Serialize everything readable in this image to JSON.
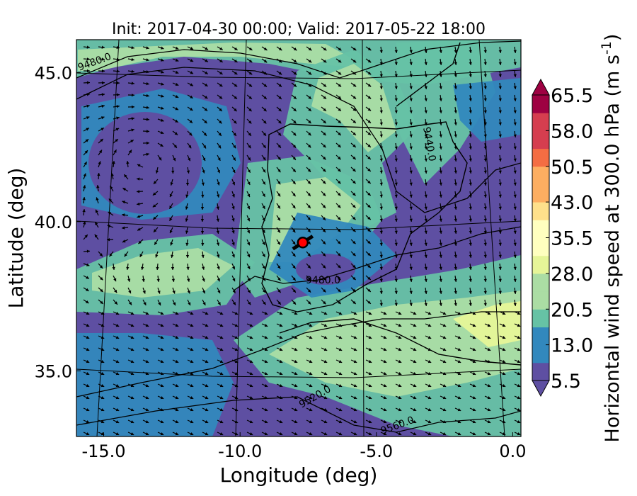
{
  "chart_data": {
    "type": "heatmap",
    "title": "Init: 2017-04-30 00:00; Valid: 2017-05-22 18:00",
    "xlabel": "Longitude (deg)",
    "ylabel": "Latitude (deg)",
    "xlim": [
      -16.0,
      0.3
    ],
    "ylim": [
      32.8,
      46.1
    ],
    "xticks": [
      "-15.0",
      "-10.0",
      "-5.0",
      "0.0"
    ],
    "yticks": [
      "35.0",
      "40.0",
      "45.0"
    ],
    "grid": true,
    "colorbar": {
      "label": "Horizontal wind speed at 300.0 hPa (m s$^{-1}$)",
      "label_main": "Horizontal wind speed at 300.0 hPa (m s",
      "label_exp": "-1",
      "label_close": ")",
      "ticks": [
        "5.5",
        "13.0",
        "20.5",
        "28.0",
        "35.5",
        "43.0",
        "50.5",
        "58.0",
        "65.5"
      ],
      "range": [
        5.5,
        65.5
      ],
      "extend": "both",
      "colormap": [
        "#5e4fa2",
        "#3288bd",
        "#66c2a5",
        "#abdda4",
        "#e6f598",
        "#ffffbf",
        "#fee08b",
        "#fdae61",
        "#f46d43",
        "#d53e4f",
        "#9e0142"
      ]
    },
    "contour_labels": [
      "9480.0",
      "9440.0",
      "9480.0",
      "9520.0",
      "9560.0"
    ],
    "marker": {
      "lon": -7.7,
      "lat": 39.3,
      "color": "#ff0000"
    }
  }
}
